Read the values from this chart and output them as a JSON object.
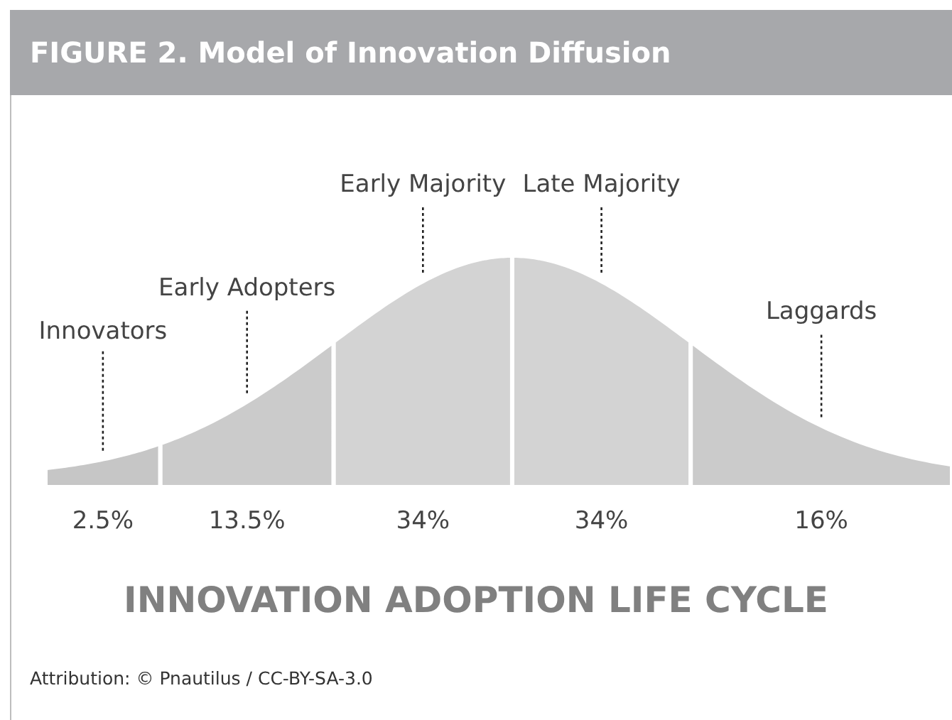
{
  "chart_data": {
    "type": "other",
    "title": "FIGURE 2. Model of Innovation Diffusion",
    "xlabel": "INNOVATION ADOPTION LIFE CYCLE",
    "categories": [
      "Innovators",
      "Early Adopters",
      "Early Majority",
      "Late Majority",
      "Laggards"
    ],
    "values": [
      2.5,
      13.5,
      34,
      34,
      16
    ],
    "value_labels": [
      "2.5%",
      "13.5%",
      "34%",
      "34%",
      "16%"
    ],
    "colors": [
      "#c6c6c6",
      "#cbcbcb",
      "#d3d3d3",
      "#d3d3d3",
      "#cbcbcb"
    ],
    "annotations": [
      "Attribution: © Pnautilus / CC-BY-SA-3.0"
    ]
  }
}
